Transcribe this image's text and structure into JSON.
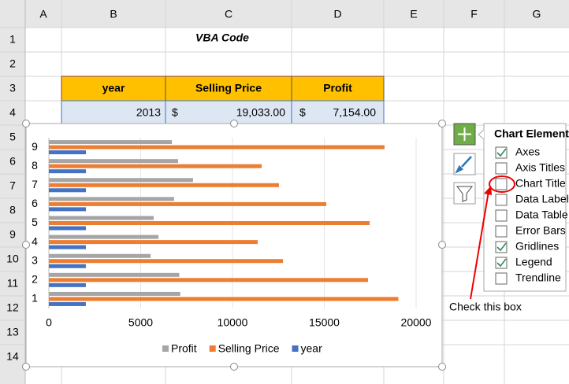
{
  "sheet": {
    "columns": [
      "A",
      "B",
      "C",
      "D",
      "E",
      "F",
      "G"
    ],
    "row_headers": [
      "1",
      "2",
      "3",
      "4",
      "5",
      "6",
      "7",
      "8",
      "9",
      "10",
      "11",
      "12",
      "13",
      "14"
    ],
    "title": "VBA Code",
    "table": {
      "header": [
        "year",
        "Selling Price",
        "Profit"
      ],
      "rows": [
        [
          "2013",
          "$",
          "19,033.00",
          "$",
          "7,154.00"
        ]
      ]
    }
  },
  "chart_data": {
    "type": "hbar",
    "categories": [
      "1",
      "2",
      "3",
      "4",
      "5",
      "6",
      "7",
      "8",
      "9"
    ],
    "series": [
      {
        "name": "Profit",
        "color": "#a5a5a5",
        "values": [
          7154,
          7100,
          5540,
          5970,
          5710,
          6820,
          7850,
          7040,
          6700
        ]
      },
      {
        "name": "Selling Price",
        "color": "#ed7d31",
        "values": [
          19033,
          17380,
          12750,
          11370,
          17470,
          15110,
          12530,
          11590,
          18280
        ]
      },
      {
        "name": "year",
        "color": "#4472c4",
        "values": [
          2013,
          2014,
          2015,
          2016,
          2017,
          2018,
          2019,
          2020,
          2021
        ]
      }
    ],
    "xlim": [
      0,
      20000
    ],
    "xticks": [
      0,
      5000,
      10000,
      15000,
      20000
    ],
    "grid": true,
    "legend": "bottom"
  },
  "chart_elements": {
    "title": "Chart Elements",
    "items": [
      {
        "label": "Axes",
        "checked": true
      },
      {
        "label": "Axis Titles",
        "checked": false
      },
      {
        "label": "Chart Title",
        "checked": false
      },
      {
        "label": "Data Labels",
        "checked": false
      },
      {
        "label": "Data Table",
        "checked": false
      },
      {
        "label": "Error Bars",
        "checked": false
      },
      {
        "label": "Gridlines",
        "checked": true
      },
      {
        "label": "Legend",
        "checked": true
      },
      {
        "label": "Trendline",
        "checked": false
      }
    ]
  },
  "annotation": "Check this box"
}
